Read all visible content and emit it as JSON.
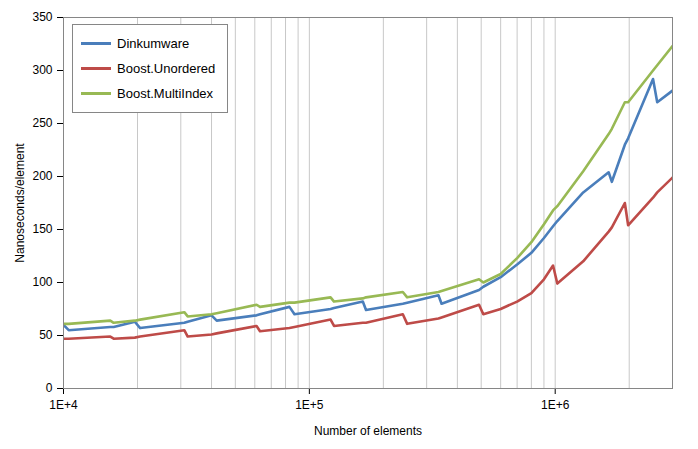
{
  "chart_data": {
    "type": "line",
    "xlabel": "Number of elements",
    "ylabel": "Nanoseconds/element",
    "log": "x",
    "grid": "x",
    "legend": "top-left",
    "xlim": [
      10000,
      3000000
    ],
    "xticks": [
      {
        "value": 10000,
        "label": "1E+4"
      },
      {
        "value": 100000,
        "label": "1E+5"
      },
      {
        "value": 1000000,
        "label": "1E+6"
      }
    ],
    "ylim": [
      0,
      350
    ],
    "yticks": [
      0,
      50,
      100,
      150,
      200,
      250,
      300,
      350
    ],
    "x": [
      10000,
      10500,
      15500,
      16000,
      19500,
      20500,
      31000,
      32000,
      40000,
      42000,
      61000,
      63000,
      83000,
      87000,
      122000,
      126000,
      165000,
      170000,
      240000,
      250000,
      335000,
      345000,
      490000,
      510000,
      600000,
      700000,
      800000,
      900000,
      980000,
      1020000,
      1300000,
      1650000,
      1700000,
      1920000,
      1980000,
      2500000,
      2600000,
      3000000
    ],
    "series": [
      {
        "name": "Dinkumware",
        "color": "#4a7ebb",
        "values": [
          60,
          55,
          58,
          58,
          63,
          57,
          62,
          63,
          69,
          64,
          69,
          70,
          77,
          70,
          75,
          76,
          82,
          74,
          80,
          81,
          88,
          80,
          93,
          96,
          105,
          117,
          128,
          142,
          153,
          158,
          185,
          204,
          195,
          230,
          236,
          292,
          270,
          281
        ]
      },
      {
        "name": "Boost.Unordered",
        "color": "#be4b48",
        "values": [
          47,
          47,
          49,
          47,
          48,
          49,
          55,
          49,
          51,
          52,
          59,
          54,
          57,
          58,
          65,
          59,
          62,
          62,
          70,
          61,
          66,
          67,
          79,
          70,
          75,
          82,
          90,
          103,
          116,
          99,
          120,
          148,
          152,
          175,
          154,
          180,
          185,
          199
        ]
      },
      {
        "name": "Boost.MultiIndex",
        "color": "#98b954",
        "values": [
          61,
          61,
          64,
          62,
          64,
          65,
          72,
          68,
          70,
          71,
          79,
          77,
          81,
          81,
          86,
          82,
          85,
          86,
          91,
          86,
          91,
          92,
          103,
          100,
          108,
          123,
          138,
          155,
          168,
          172,
          205,
          240,
          245,
          270,
          270,
          300,
          305,
          323
        ]
      }
    ]
  }
}
